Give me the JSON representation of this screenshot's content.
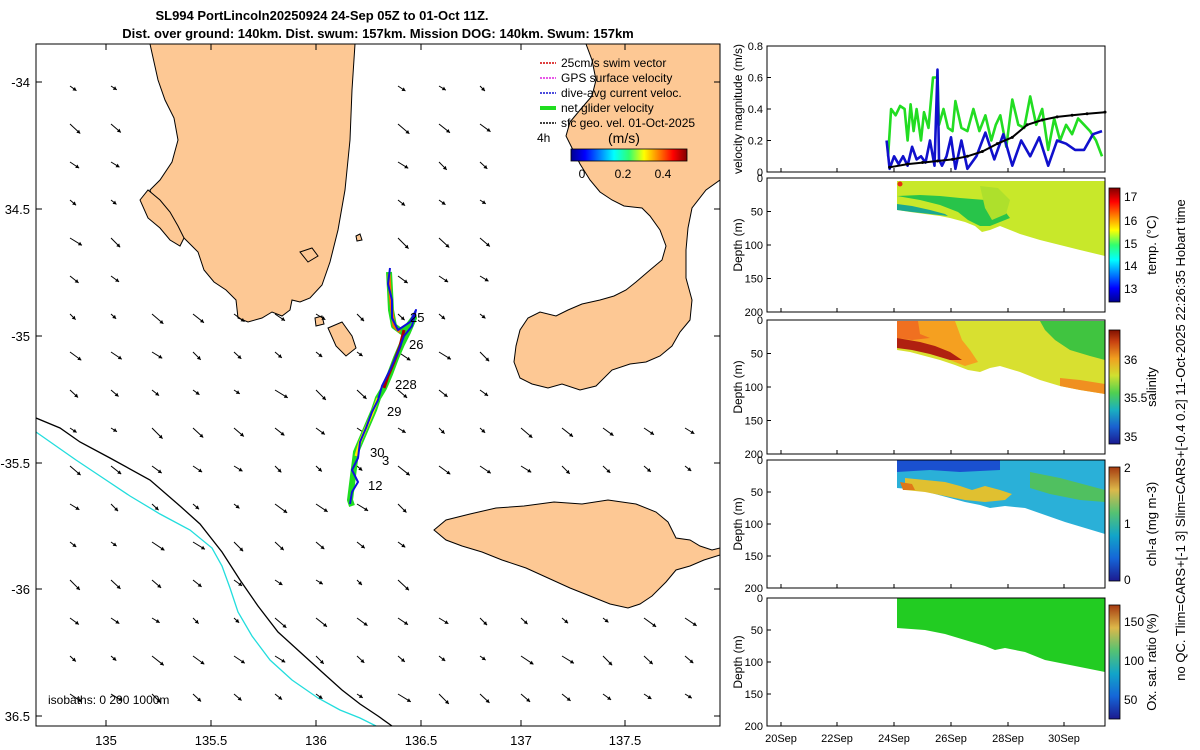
{
  "title": {
    "line1": "SL994 PortLincoln20250924 24-Sep 05Z to 01-Oct 11Z.",
    "line2": "Dist. over ground: 140km. Dist. swum: 157km. Mission DOG: 140km. Swum: 157km"
  },
  "side_note": "no QC. Tlim=CARS+[-1 3] Slim=CARS+[-0.4 0.2] 11-Oct-2025 22:26:35 Hobart time",
  "map": {
    "lon_ticks": [
      "135",
      "135.5",
      "136",
      "136.5",
      "137",
      "137.5"
    ],
    "lat_ticks": [
      "-34",
      "34.5",
      "-35",
      "-35.5",
      "-36",
      "36.5"
    ],
    "legend": [
      "25cm/s swim vector",
      "GPS surface velocity",
      "dive-avg current veloc.",
      "net glider velocity",
      "sfc geo. vel. 01-Oct-2025"
    ],
    "legend_colors": [
      "#d40000",
      "#e020e0",
      "#1010d0",
      "#20dd20",
      "#000000"
    ],
    "scale_label": "4h",
    "colorbar_label": "(m/s)",
    "colorbar_ticks": [
      "0",
      "0.2",
      "0.4"
    ],
    "day_labels": [
      "25",
      "26",
      "228",
      "29",
      "30",
      "3",
      "12"
    ],
    "isobaths_label": "isobaths: 0   200  1000m"
  },
  "chart_data": [
    {
      "type": "line",
      "ylabel": "velocity magnitude (m/s)",
      "ylim": [
        0,
        0.8
      ],
      "yticks": [
        "0",
        "0.2",
        "0.4",
        "0.6",
        "0.8"
      ],
      "x_days": [
        20.3,
        31.6
      ],
      "series": [
        {
          "name": "net glider velocity",
          "color": "#22dd22",
          "x": [
            24.35,
            24.45,
            24.6,
            24.75,
            24.9,
            25.0,
            25.1,
            25.2,
            25.3,
            25.45,
            25.55,
            25.7,
            25.85,
            26.0,
            26.05,
            26.2,
            26.35,
            26.5,
            26.6,
            26.8,
            27.0,
            27.2,
            27.4,
            27.6,
            27.8,
            27.95,
            28.1,
            28.3,
            28.5,
            28.7,
            28.9,
            29.1,
            29.3,
            29.5,
            29.7,
            29.9,
            30.1,
            30.3,
            30.5,
            30.7,
            30.9,
            31.1,
            31.3,
            31.5
          ],
          "values": [
            0.1,
            0.4,
            0.36,
            0.42,
            0.4,
            0.2,
            0.43,
            0.26,
            0.4,
            0.2,
            0.38,
            0.28,
            0.6,
            0.6,
            0.3,
            0.4,
            0.28,
            0.26,
            0.45,
            0.28,
            0.26,
            0.4,
            0.26,
            0.36,
            0.2,
            0.3,
            0.36,
            0.16,
            0.46,
            0.3,
            0.28,
            0.48,
            0.3,
            0.4,
            0.14,
            0.34,
            0.2,
            0.3,
            0.24,
            0.34,
            0.3,
            0.26,
            0.2,
            0.1
          ]
        },
        {
          "name": "dive-avg current veloc.",
          "color": "#1010cc",
          "x": [
            24.3,
            24.4,
            24.55,
            24.7,
            24.85,
            25.0,
            25.15,
            25.3,
            25.45,
            25.6,
            25.75,
            25.9,
            26.0,
            26.05,
            26.15,
            26.3,
            26.45,
            26.6,
            26.8,
            27.0,
            27.3,
            27.6,
            27.9,
            28.2,
            28.5,
            28.8,
            29.1,
            29.4,
            29.7,
            30.0,
            30.3,
            30.6,
            30.9,
            31.2,
            31.5
          ],
          "values": [
            0.2,
            0.02,
            0.1,
            0.05,
            0.1,
            0.04,
            0.16,
            0.08,
            0.1,
            0.06,
            0.2,
            0.04,
            0.65,
            0.08,
            0.04,
            0.1,
            0.22,
            0.02,
            0.2,
            0.02,
            0.1,
            0.25,
            0.08,
            0.24,
            0.04,
            0.2,
            0.1,
            0.22,
            0.04,
            0.2,
            0.18,
            0.14,
            0.14,
            0.24,
            0.26
          ]
        },
        {
          "name": "sfc geo. vel.",
          "color": "#000000",
          "x": [
            24.4,
            25.0,
            25.5,
            26.0,
            26.5,
            27.0,
            27.5,
            28.0,
            28.5,
            29.0,
            29.5,
            30.0,
            30.5,
            31.0,
            31.6
          ],
          "values": [
            0.03,
            0.05,
            0.06,
            0.07,
            0.08,
            0.1,
            0.13,
            0.18,
            0.22,
            0.3,
            0.33,
            0.35,
            0.36,
            0.37,
            0.38
          ]
        }
      ]
    },
    {
      "type": "heatmap",
      "ylabel": "Depth (m)",
      "cblabel": "temp. (°C)",
      "cbticks": [
        "17",
        "16",
        "15",
        "14",
        "13"
      ],
      "ylim": [
        0,
        200
      ],
      "yticks": [
        "0",
        "50",
        "100",
        "150",
        "200"
      ]
    },
    {
      "type": "heatmap",
      "ylabel": "Depth (m)",
      "cblabel": "salinity",
      "cbticks": [
        "36",
        "35.5",
        "35"
      ],
      "ylim": [
        0,
        200
      ],
      "yticks": [
        "0",
        "50",
        "100",
        "150",
        "200"
      ]
    },
    {
      "type": "heatmap",
      "ylabel": "Depth (m)",
      "cblabel": "chl-a (mg m-3)",
      "cbticks": [
        "2",
        "1",
        "0"
      ],
      "ylim": [
        0,
        200
      ],
      "yticks": [
        "0",
        "50",
        "100",
        "150",
        "200"
      ]
    },
    {
      "type": "heatmap",
      "ylabel": "Depth (m)",
      "cblabel": "Ox. sat. ratio (%)",
      "cbticks": [
        "150",
        "100",
        "50"
      ],
      "ylim": [
        0,
        200
      ],
      "yticks": [
        "0",
        "50",
        "100",
        "150",
        "200"
      ],
      "xticks": [
        "20Sep",
        "22Sep",
        "24Sep",
        "26Sep",
        "28Sep",
        "30Sep"
      ]
    }
  ]
}
